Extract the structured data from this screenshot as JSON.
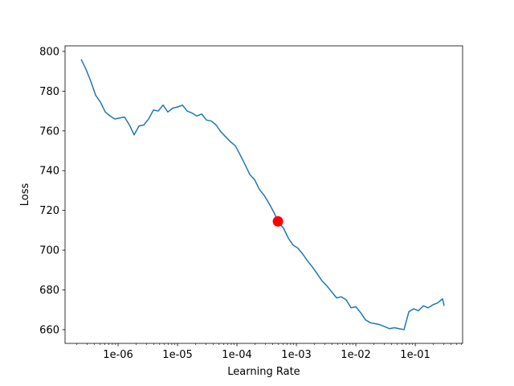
{
  "chart_data": {
    "type": "line",
    "xlabel": "Learning Rate",
    "ylabel": "Loss",
    "xscale": "log",
    "grid": false,
    "x": [
      2.39e-07,
      2.88e-07,
      3.47e-07,
      4.18e-07,
      5.04e-07,
      6.08e-07,
      7.33e-07,
      8.83e-07,
      1.06e-06,
      1.28e-06,
      1.55e-06,
      1.86e-06,
      2.25e-06,
      2.71e-06,
      3.26e-06,
      3.93e-06,
      4.74e-06,
      5.71e-06,
      6.88e-06,
      8.3e-06,
      1e-05,
      1.21e-05,
      1.45e-05,
      1.75e-05,
      2.11e-05,
      2.54e-05,
      3.06e-05,
      3.69e-05,
      4.45e-05,
      5.37e-05,
      6.47e-05,
      7.8e-05,
      9.4e-05,
      0.000113,
      0.000137,
      0.000165,
      0.000198,
      0.000239,
      0.000288,
      0.000347,
      0.000418,
      0.000504,
      0.000608,
      0.000733,
      0.000883,
      0.00106,
      0.00128,
      0.00155,
      0.00186,
      0.00225,
      0.00271,
      0.00326,
      0.00393,
      0.00474,
      0.00571,
      0.00688,
      0.0083,
      0.01,
      0.0121,
      0.0145,
      0.0175,
      0.0211,
      0.0254,
      0.0306,
      0.0369,
      0.0445,
      0.0537,
      0.0647,
      0.078,
      0.094,
      0.113,
      0.137,
      0.165,
      0.198,
      0.239,
      0.288,
      0.306
    ],
    "series": [
      {
        "color": "#1f77b4",
        "values": [
          796,
          791,
          785,
          778,
          774.5,
          769.5,
          767.5,
          766,
          766.5,
          767,
          763,
          758,
          762.5,
          763,
          766,
          770.5,
          770,
          773,
          769.5,
          771.5,
          772,
          773,
          770,
          769,
          767.5,
          768.5,
          765.5,
          765,
          763,
          759.5,
          757,
          754.5,
          752.5,
          748,
          743,
          738,
          735.5,
          730.5,
          727.5,
          723.5,
          719,
          714,
          711,
          706,
          702.5,
          701,
          698,
          694.5,
          691.5,
          688,
          684.5,
          682,
          679,
          676,
          676.5,
          675,
          671,
          671.5,
          668.5,
          665,
          663.5,
          663,
          662.5,
          661.5,
          660.5,
          661,
          660.5,
          660,
          669,
          670.5,
          669.5,
          672,
          671,
          672.5,
          673.5,
          675.5,
          672
        ]
      }
    ],
    "marker": {
      "x": 0.000489,
      "y": 714.5,
      "color": "#ff0000"
    },
    "xlim": [
      1.28e-07,
      0.626
    ],
    "ylim": [
      653.1,
      802.8
    ],
    "xticks": [
      {
        "value": 1e-06,
        "label": "1e-06"
      },
      {
        "value": 1e-05,
        "label": "1e-05"
      },
      {
        "value": 0.0001,
        "label": "1e-04"
      },
      {
        "value": 0.001,
        "label": "1e-03"
      },
      {
        "value": 0.01,
        "label": "1e-02"
      },
      {
        "value": 0.1,
        "label": "1e-01"
      }
    ],
    "yticks": [
      660,
      680,
      700,
      720,
      740,
      760,
      780,
      800
    ]
  }
}
